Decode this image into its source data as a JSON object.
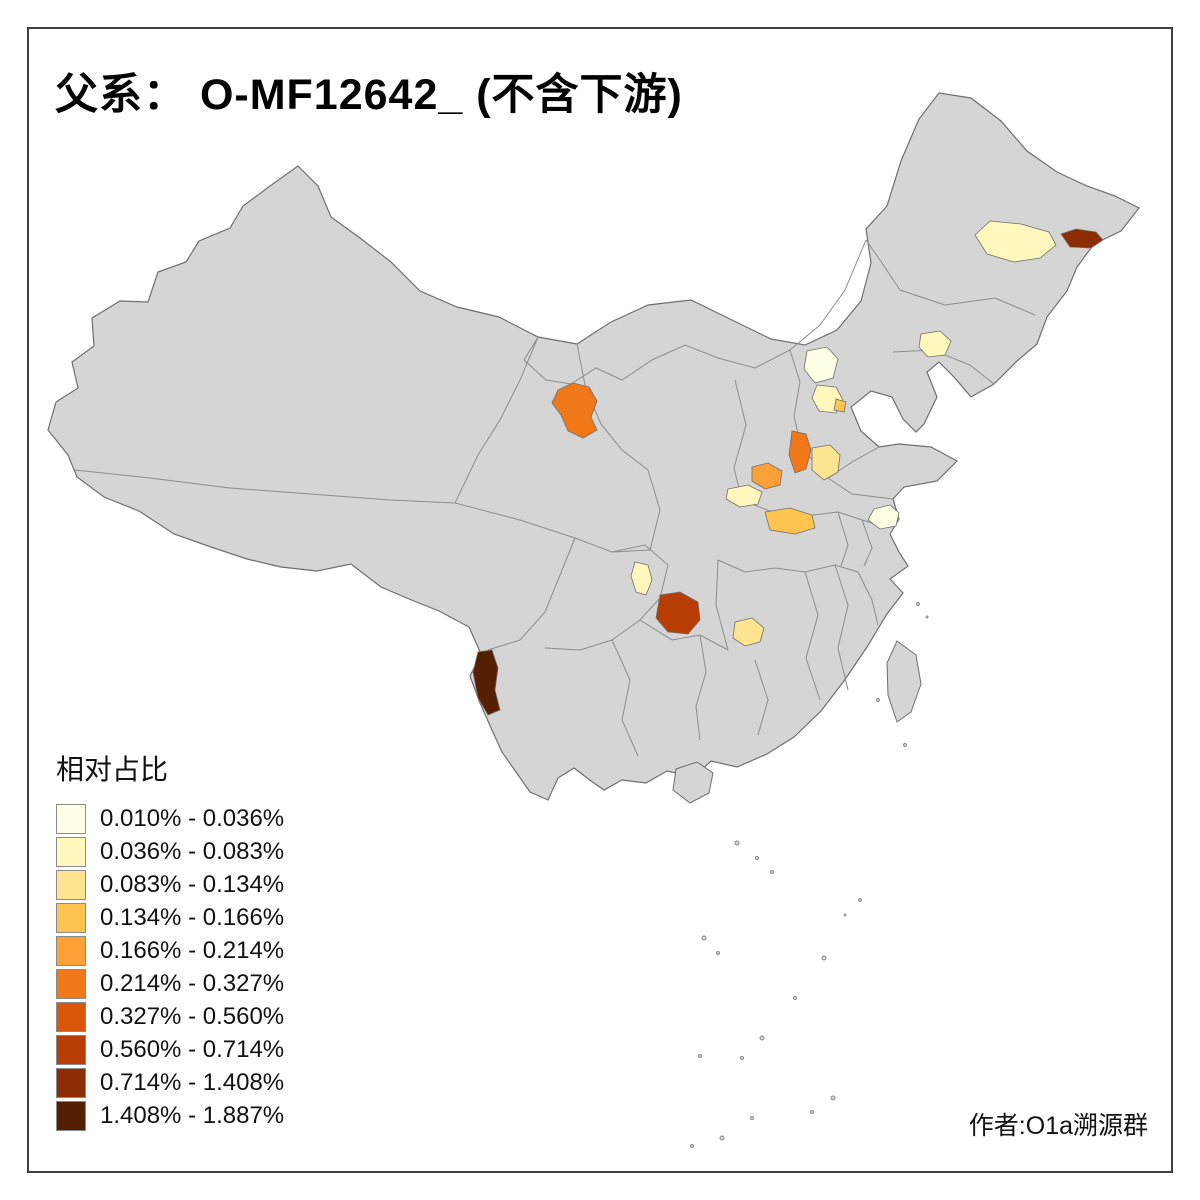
{
  "title": "父系： O-MF12642_ (不含下游)",
  "author": "作者:O1a溯源群",
  "legend": {
    "title": "相对占比",
    "items": [
      {
        "label": "0.010% - 0.036%",
        "color": "#FFFFE5"
      },
      {
        "label": "0.036% - 0.083%",
        "color": "#FFF7BC"
      },
      {
        "label": "0.083% - 0.134%",
        "color": "#FEE391"
      },
      {
        "label": "0.134% - 0.166%",
        "color": "#FEC44F"
      },
      {
        "label": "0.166% - 0.214%",
        "color": "#FDA038"
      },
      {
        "label": "0.214% - 0.327%",
        "color": "#F07818"
      },
      {
        "label": "0.327% - 0.560%",
        "color": "#D9560B"
      },
      {
        "label": "0.560% - 0.714%",
        "color": "#B83D02"
      },
      {
        "label": "0.714% - 1.408%",
        "color": "#8C2D04"
      },
      {
        "label": "1.408% - 1.887%",
        "color": "#552001"
      }
    ]
  },
  "map": {
    "description": "china-prefecture-choropleth",
    "base_fill": "#D5D5D5",
    "outline_color": "#6F6F6F",
    "inner_border_color": "#8C8C8C",
    "regions": [
      {
        "name": "heilongjiang-central",
        "color": "#FFF7BC",
        "bucket": "0.036% - 0.083%"
      },
      {
        "name": "heilongjiang-east",
        "color": "#8C2D04",
        "bucket": "0.714% - 1.408%"
      },
      {
        "name": "liaoning-east",
        "color": "#FFF7BC",
        "bucket": "0.036% - 0.083%"
      },
      {
        "name": "beijing",
        "color": "#FFFFE5",
        "bucket": "0.010% - 0.036%"
      },
      {
        "name": "hebei-langfang",
        "color": "#FFF7BC",
        "bucket": "0.036% - 0.083%"
      },
      {
        "name": "tianjin",
        "color": "#FEC44F",
        "bucket": "0.134% - 0.166%"
      },
      {
        "name": "ningxia",
        "color": "#F07818",
        "bucket": "0.214% - 0.327%"
      },
      {
        "name": "henan-north",
        "color": "#F07818",
        "bucket": "0.214% - 0.327%"
      },
      {
        "name": "shandong-southwest",
        "color": "#FEE391",
        "bucket": "0.083% - 0.134%"
      },
      {
        "name": "henan-zhengzhou",
        "color": "#FDA038",
        "bucket": "0.166% - 0.214%"
      },
      {
        "name": "henan-nanyang",
        "color": "#FFF7BC",
        "bucket": "0.036% - 0.083%"
      },
      {
        "name": "henan-zhoukou",
        "color": "#FEC44F",
        "bucket": "0.134% - 0.166%"
      },
      {
        "name": "jiangsu-south",
        "color": "#FFFFE5",
        "bucket": "0.010% - 0.036%"
      },
      {
        "name": "sichuan-east",
        "color": "#FFF7BC",
        "bucket": "0.036% - 0.083%"
      },
      {
        "name": "guizhou-north",
        "color": "#B83D02",
        "bucket": "0.560% - 0.714%"
      },
      {
        "name": "hunan-north",
        "color": "#FEE391",
        "bucket": "0.083% - 0.134%"
      },
      {
        "name": "yunnan-west",
        "color": "#552001",
        "bucket": "1.408% - 1.887%"
      }
    ]
  }
}
